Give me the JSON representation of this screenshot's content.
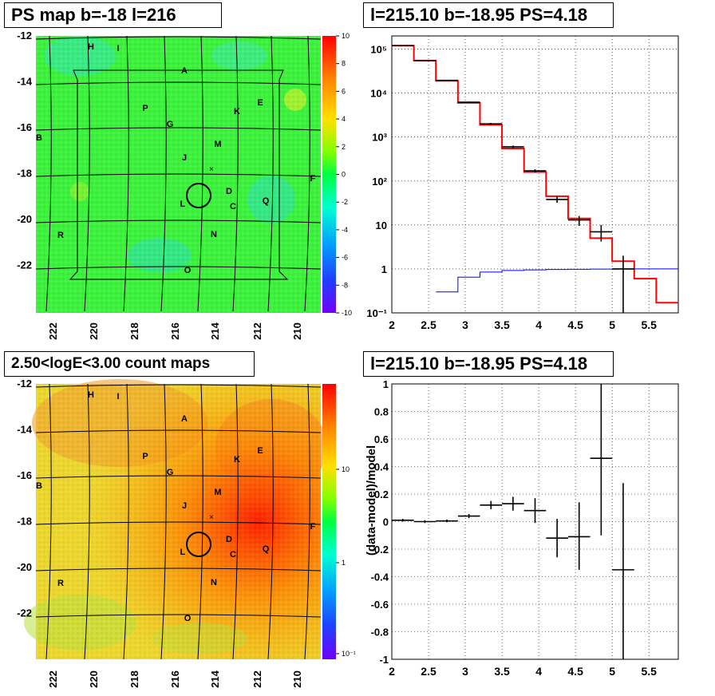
{
  "panels": {
    "ps_map_title": "PS map b=-18 l=216",
    "spectrum_title": "l=215.10 b=-18.95 PS=4.18",
    "count_map_title": "2.50<logE<3.00 count maps",
    "residual_title": "l=215.10 b=-18.95 PS=4.18"
  },
  "sky_maps": {
    "lat_ticks": [
      "-12",
      "-14",
      "-16",
      "-18",
      "-20",
      "-22"
    ],
    "lon_ticks": [
      "222",
      "220",
      "218",
      "216",
      "214",
      "212",
      "210"
    ],
    "source_labels": [
      "H",
      "I",
      "A",
      "P",
      "G",
      "K",
      "E",
      "B",
      "M",
      "J",
      "F",
      "D",
      "L",
      "C",
      "Q",
      "R",
      "N",
      "O"
    ],
    "ps_colorbar_ticks": [
      "10",
      "8",
      "6",
      "4",
      "2",
      "0",
      "-2",
      "-4",
      "-6",
      "-8",
      "-10"
    ],
    "count_colorbar_ticks": [
      "10",
      "1",
      "10⁻¹"
    ]
  },
  "chart_data": [
    {
      "type": "line",
      "title": "l=215.10 b=-18.95 PS=4.18",
      "xlabel": "",
      "ylabel": "",
      "xlim": [
        2,
        5.9
      ],
      "ylim": [
        0.1,
        200000
      ],
      "yscale": "log",
      "grid": true,
      "x_ticks": [
        "2",
        "2.5",
        "3",
        "3.5",
        "4",
        "4.5",
        "5",
        "5.5"
      ],
      "y_ticks": [
        "10⁻¹",
        "1",
        "10",
        "10²",
        "10³",
        "10⁴",
        "10⁵"
      ],
      "series": [
        {
          "color": "#ff0000",
          "style": "step",
          "bins": [
            2.0,
            2.3,
            2.6,
            2.9,
            3.2,
            3.5,
            3.8,
            4.1,
            4.4,
            4.7,
            5.0,
            5.3,
            5.6,
            5.9
          ],
          "values": [
            120000,
            55000,
            19000,
            6000,
            1900,
            550,
            160,
            45,
            14,
            5,
            1.5,
            0.6,
            0.17
          ]
        },
        {
          "color": "#0000ff",
          "style": "step",
          "bins": [
            2.6,
            2.9,
            3.2,
            3.5,
            3.8,
            4.1,
            4.4,
            4.7,
            5.0,
            5.3,
            5.6,
            5.9
          ],
          "values": [
            0.3,
            0.65,
            0.85,
            0.92,
            0.95,
            0.97,
            0.98,
            0.99,
            0.99,
            1.0,
            1.0
          ]
        },
        {
          "color": "#000000",
          "style": "points",
          "points": [
            {
              "x": 2.15,
              "y": 120000,
              "xerr": 0.15,
              "ylo": 120000,
              "yhi": 120000
            },
            {
              "x": 2.45,
              "y": 55000,
              "xerr": 0.15,
              "ylo": 55000,
              "yhi": 55000
            },
            {
              "x": 2.75,
              "y": 19500,
              "xerr": 0.15,
              "ylo": 19500,
              "yhi": 19500
            },
            {
              "x": 3.05,
              "y": 6200,
              "xerr": 0.15,
              "ylo": 6000,
              "yhi": 6400
            },
            {
              "x": 3.35,
              "y": 2000,
              "xerr": 0.15,
              "ylo": 1900,
              "yhi": 2100
            },
            {
              "x": 3.65,
              "y": 600,
              "xerr": 0.15,
              "ylo": 560,
              "yhi": 640
            },
            {
              "x": 3.95,
              "y": 170,
              "xerr": 0.15,
              "ylo": 155,
              "yhi": 185
            },
            {
              "x": 4.25,
              "y": 38,
              "xerr": 0.15,
              "ylo": 32,
              "yhi": 45
            },
            {
              "x": 4.55,
              "y": 13,
              "xerr": 0.15,
              "ylo": 9.5,
              "yhi": 16
            },
            {
              "x": 4.85,
              "y": 7,
              "xerr": 0.15,
              "ylo": 4.2,
              "yhi": 10
            },
            {
              "x": 5.15,
              "y": 1,
              "xerr": 0.15,
              "ylo": 0.1,
              "yhi": 2
            }
          ]
        }
      ]
    },
    {
      "type": "scatter",
      "title": "l=215.10 b=-18.95 PS=4.18",
      "xlabel": "",
      "ylabel": "(data-model)/model",
      "xlim": [
        2,
        5.9
      ],
      "ylim": [
        -1,
        1
      ],
      "grid": true,
      "x_ticks": [
        "2",
        "2.5",
        "3",
        "3.5",
        "4",
        "4.5",
        "5",
        "5.5"
      ],
      "y_ticks": [
        "1",
        "0.8",
        "0.6",
        "0.4",
        "0.2",
        "0",
        "-0.2",
        "-0.4",
        "-0.6",
        "-0.8",
        "-1"
      ],
      "series": [
        {
          "color": "#000000",
          "points": [
            {
              "x": 2.15,
              "y": 0.01,
              "xerr": 0.15,
              "ylo": 0.0,
              "yhi": 0.02
            },
            {
              "x": 2.45,
              "y": 0.0,
              "xerr": 0.15,
              "ylo": -0.01,
              "yhi": 0.01
            },
            {
              "x": 2.75,
              "y": 0.005,
              "xerr": 0.15,
              "ylo": -0.005,
              "yhi": 0.015
            },
            {
              "x": 3.05,
              "y": 0.04,
              "xerr": 0.15,
              "ylo": 0.025,
              "yhi": 0.055
            },
            {
              "x": 3.35,
              "y": 0.12,
              "xerr": 0.15,
              "ylo": 0.09,
              "yhi": 0.15
            },
            {
              "x": 3.65,
              "y": 0.13,
              "xerr": 0.15,
              "ylo": 0.08,
              "yhi": 0.18
            },
            {
              "x": 3.95,
              "y": 0.08,
              "xerr": 0.15,
              "ylo": -0.01,
              "yhi": 0.17
            },
            {
              "x": 4.25,
              "y": -0.12,
              "xerr": 0.15,
              "ylo": -0.26,
              "yhi": 0.02
            },
            {
              "x": 4.55,
              "y": -0.11,
              "xerr": 0.15,
              "ylo": -0.35,
              "yhi": 0.14
            },
            {
              "x": 4.85,
              "y": 0.46,
              "xerr": 0.15,
              "ylo": -0.1,
              "yhi": 1.0
            },
            {
              "x": 5.15,
              "y": -0.35,
              "xerr": 0.15,
              "ylo": -1.0,
              "yhi": 0.28
            }
          ]
        }
      ]
    }
  ]
}
